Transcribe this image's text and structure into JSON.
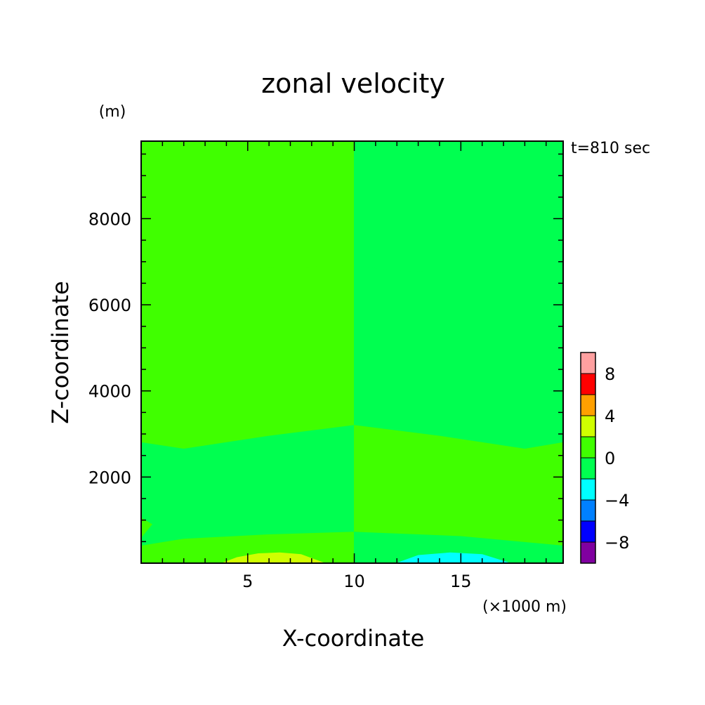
{
  "chart_data": {
    "type": "contour",
    "title": "zonal velocity",
    "xlabel": "X-coordinate",
    "ylabel": "Z-coordinate",
    "x_unit": "(×1000 m)",
    "y_unit": "(m)",
    "time_label": "t=810 sec",
    "xlim": [
      0,
      19.8
    ],
    "ylim": [
      0,
      9800
    ],
    "x_ticks": [
      5,
      10,
      15
    ],
    "y_ticks": [
      2000,
      4000,
      6000,
      8000
    ],
    "x_minor_step": 1,
    "y_minor_step": 500,
    "colorbar": {
      "levels": [
        -10,
        -8,
        -6,
        -4,
        -2,
        0,
        2,
        4,
        6,
        8,
        10
      ],
      "colors": [
        "#8000a0",
        "#0000ff",
        "#0080ff",
        "#00ffff",
        "#00ff50",
        "#40ff00",
        "#d0ff00",
        "#ffa000",
        "#ff0000",
        "#ffa0a0"
      ],
      "tick_labels": [
        {
          "value": -8,
          "text": "−8"
        },
        {
          "value": -4,
          "text": "−4"
        },
        {
          "value": 0,
          "text": "0"
        },
        {
          "value": 4,
          "text": "4"
        },
        {
          "value": 8,
          "text": "8"
        }
      ]
    },
    "regions": [
      {
        "band": "0 to 2",
        "color": "#40ff00",
        "points": [
          [
            0,
            6750
          ],
          [
            10,
            6900
          ],
          [
            10,
            9800
          ],
          [
            0,
            9800
          ]
        ]
      },
      {
        "band": "-2 to 0",
        "color": "#00ff50",
        "points": [
          [
            10,
            6900
          ],
          [
            12,
            6780
          ],
          [
            15,
            6730
          ],
          [
            19.8,
            6750
          ],
          [
            19.8,
            9800
          ],
          [
            10,
            9800
          ]
        ]
      },
      {
        "band": "0 to 2",
        "color": "#40ff00",
        "points": [
          [
            0,
            2800
          ],
          [
            2,
            2650
          ],
          [
            6,
            2950
          ],
          [
            10,
            3200
          ],
          [
            10,
            6900
          ],
          [
            0,
            6750
          ]
        ]
      },
      {
        "band": "-2 to 0",
        "color": "#00ff50",
        "points": [
          [
            10,
            3200
          ],
          [
            14,
            2950
          ],
          [
            18,
            2650
          ],
          [
            19.8,
            2800
          ],
          [
            19.8,
            6750
          ],
          [
            15,
            6730
          ],
          [
            12,
            6780
          ],
          [
            10,
            6900
          ]
        ]
      },
      {
        "band": "-2 to 0",
        "color": "#00ff50",
        "points": [
          [
            0,
            400
          ],
          [
            2,
            560
          ],
          [
            6,
            660
          ],
          [
            10,
            720
          ],
          [
            10,
            3200
          ],
          [
            6,
            2950
          ],
          [
            2,
            2650
          ],
          [
            0,
            2800
          ]
        ]
      },
      {
        "band": "0 to 2",
        "color": "#40ff00",
        "points": [
          [
            10,
            720
          ],
          [
            15,
            620
          ],
          [
            19.8,
            400
          ],
          [
            19.8,
            2800
          ],
          [
            18,
            2650
          ],
          [
            14,
            2950
          ],
          [
            10,
            3200
          ]
        ]
      },
      {
        "band": "0 to 2",
        "color": "#40ff00",
        "points": [
          [
            0,
            0
          ],
          [
            19.8,
            0
          ],
          [
            19.8,
            400
          ],
          [
            15,
            620
          ],
          [
            10,
            720
          ],
          [
            6,
            660
          ],
          [
            2,
            560
          ],
          [
            0,
            400
          ]
        ]
      },
      {
        "band": "-2 to 0",
        "color": "#00ff50",
        "points": [
          [
            10,
            0
          ],
          [
            19.8,
            0
          ],
          [
            19.8,
            400
          ],
          [
            15,
            620
          ],
          [
            10,
            720
          ]
        ]
      },
      {
        "band": "0 to 2",
        "color": "#40ff00",
        "points": [
          [
            0,
            600
          ],
          [
            0.5,
            900
          ],
          [
            0,
            1050
          ]
        ]
      },
      {
        "band": "2 to 4",
        "color": "#d0ff00",
        "points": [
          [
            3.8,
            0
          ],
          [
            4.5,
            130
          ],
          [
            5.5,
            220
          ],
          [
            6.5,
            240
          ],
          [
            7.5,
            200
          ],
          [
            8.6,
            0
          ]
        ]
      },
      {
        "band": "-4 to -2",
        "color": "#00ffff",
        "points": [
          [
            12,
            0
          ],
          [
            13,
            180
          ],
          [
            14.5,
            240
          ],
          [
            16,
            200
          ],
          [
            17.3,
            0
          ]
        ]
      }
    ]
  }
}
